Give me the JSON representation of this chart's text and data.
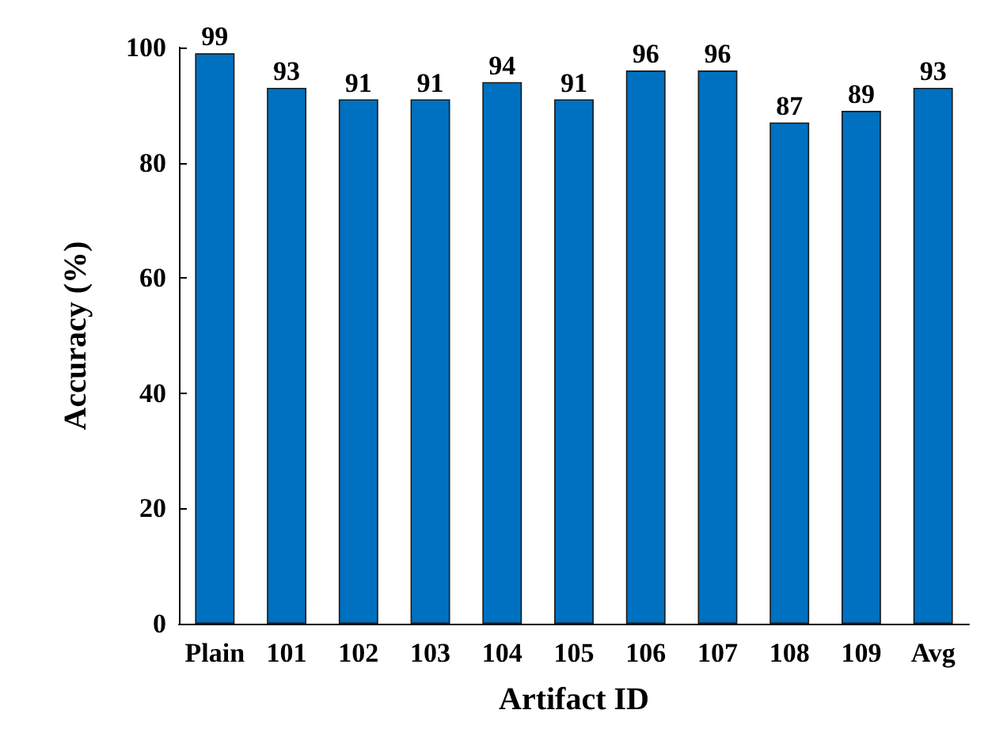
{
  "chart_data": {
    "type": "bar",
    "xlabel": "Artifact ID",
    "ylabel": "Accuracy (%)",
    "categories": [
      "Plain",
      "101",
      "102",
      "103",
      "104",
      "105",
      "106",
      "107",
      "108",
      "109",
      "Avg"
    ],
    "values": [
      99,
      93,
      91,
      91,
      94,
      91,
      96,
      96,
      87,
      89,
      93
    ],
    "color": "#0070c0",
    "ylim": [
      0,
      100
    ],
    "yticks": [
      0,
      20,
      40,
      60,
      80,
      100
    ],
    "grid": false,
    "data_labels": true
  }
}
